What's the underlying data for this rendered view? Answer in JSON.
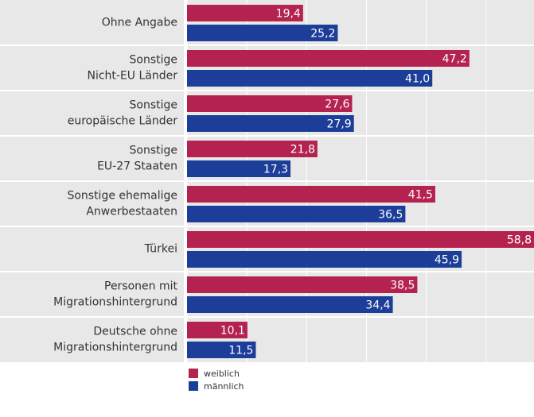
{
  "chart_data": {
    "type": "bar",
    "orientation": "horizontal",
    "categories": [
      [
        "Ohne Angabe"
      ],
      [
        "Sonstige",
        "Nicht-EU Länder"
      ],
      [
        "Sonstige",
        "europäische Länder"
      ],
      [
        "Sonstige",
        "EU-27 Staaten"
      ],
      [
        "Sonstige ehemalige",
        "Anwerbestaaten"
      ],
      [
        "Türkei"
      ],
      [
        "Personen mit",
        "Migrationshintergrund"
      ],
      [
        "Deutsche ohne",
        "Migrationshintergrund"
      ]
    ],
    "series": [
      {
        "name": "weiblich",
        "color": "#b4234f",
        "values": [
          19.4,
          47.2,
          27.6,
          21.8,
          41.5,
          58.8,
          38.5,
          10.1
        ],
        "value_labels": [
          "19,4",
          "47,2",
          "27,6",
          "21,8",
          "41,5",
          "58,8",
          "38,5",
          "10,1"
        ]
      },
      {
        "name": "männlich",
        "color": "#1c3d98",
        "values": [
          25.2,
          41.0,
          27.9,
          17.3,
          36.5,
          45.9,
          34.4,
          11.5
        ],
        "value_labels": [
          "25,2",
          "41,0",
          "27,9",
          "17,3",
          "36,5",
          "45,9",
          "34,4",
          "11,5"
        ]
      }
    ],
    "xlim": [
      0,
      58
    ],
    "xticks": [
      0,
      10,
      20,
      30,
      40,
      50
    ],
    "grid": true
  }
}
